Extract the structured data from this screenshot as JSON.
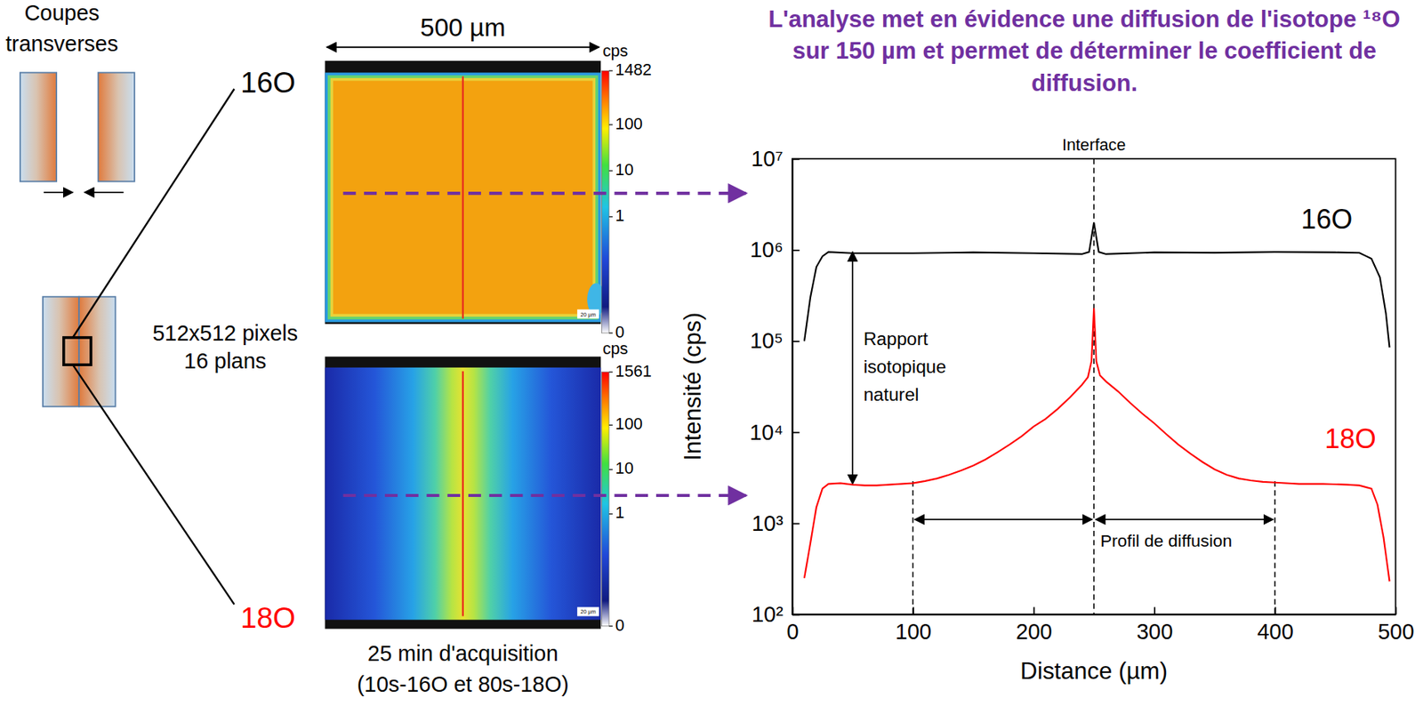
{
  "title": "L'analyse met en évidence une diffusion de l'isotope ¹⁸O sur 150 µm et permet de déterminer le coefficient de diffusion.",
  "left_panel": {
    "caption": "Coupes transverses",
    "width_label": "500 µm",
    "image_info": [
      "512x512 pixels",
      "16 plans"
    ],
    "acquisition": [
      "25 min d'acquisition",
      "(10s-16O et 80s-18O)"
    ],
    "maps": [
      {
        "label": "16O",
        "color": "#000000",
        "unit": "cps",
        "colorbar_range": [
          0,
          1482
        ],
        "colorbar_ticks": [
          0,
          1,
          10,
          100,
          1482
        ],
        "scale_bar": "20 µm"
      },
      {
        "label": "18O",
        "color": "#ff0000",
        "unit": "cps",
        "colorbar_range": [
          0,
          1561
        ],
        "colorbar_ticks": [
          0,
          1,
          10,
          100,
          1561
        ],
        "scale_bar": "20 µm"
      }
    ]
  },
  "chart_data": {
    "type": "line",
    "log": "y",
    "xlabel": "Distance (µm)",
    "ylabel": "Intensité (cps)",
    "xlim": [
      0,
      500
    ],
    "ylim": [
      100,
      10000000
    ],
    "xticks": [
      0,
      100,
      200,
      300,
      400,
      500
    ],
    "yticks": [
      {
        "value": 100,
        "label": "10²"
      },
      {
        "value": 1000,
        "label": "10³"
      },
      {
        "value": 10000,
        "label": "10⁴"
      },
      {
        "value": 100000,
        "label": "10⁵"
      },
      {
        "value": 1000000,
        "label": "10⁶"
      },
      {
        "value": 10000000,
        "label": "10⁷"
      }
    ],
    "series": [
      {
        "name": "16O",
        "color": "#000000",
        "x": [
          10,
          15,
          20,
          25,
          30,
          50,
          100,
          150,
          200,
          240,
          246,
          250,
          254,
          260,
          300,
          350,
          400,
          450,
          470,
          480,
          487,
          492,
          495
        ],
        "values": [
          100000,
          300000,
          650000,
          850000,
          950000,
          920000,
          920000,
          940000,
          920000,
          900000,
          950000,
          2000000,
          950000,
          900000,
          940000,
          930000,
          950000,
          940000,
          930000,
          800000,
          500000,
          200000,
          85000
        ]
      },
      {
        "name": "18O",
        "color": "#ff0000",
        "x": [
          10,
          15,
          20,
          25,
          30,
          40,
          50,
          60,
          70,
          80,
          90,
          100,
          110,
          120,
          130,
          140,
          150,
          160,
          170,
          180,
          190,
          200,
          210,
          220,
          230,
          240,
          245,
          248,
          250,
          252,
          255,
          260,
          270,
          280,
          290,
          300,
          310,
          320,
          330,
          340,
          350,
          360,
          370,
          380,
          390,
          400,
          420,
          440,
          460,
          470,
          480,
          485,
          490,
          495
        ],
        "values": [
          250,
          600,
          1500,
          2400,
          2700,
          2750,
          2650,
          2600,
          2600,
          2650,
          2700,
          2750,
          2900,
          3100,
          3400,
          3800,
          4300,
          5000,
          6000,
          7300,
          9000,
          11500,
          14000,
          18000,
          24000,
          33000,
          40000,
          60000,
          230000,
          60000,
          42000,
          36000,
          28000,
          21000,
          16000,
          12500,
          9500,
          7300,
          5800,
          4700,
          3900,
          3400,
          3100,
          2950,
          2850,
          2800,
          2700,
          2700,
          2650,
          2600,
          2400,
          1600,
          700,
          230
        ]
      }
    ],
    "annotations": {
      "interface": {
        "text": "Interface",
        "x": 250
      },
      "natural_ratio": {
        "text": "Rapport isotopique naturel",
        "x": 50,
        "y_from": 950000,
        "y_to": 2700
      },
      "diffusion_profile": {
        "text": "Profil de diffusion",
        "x_from": 100,
        "x_center": 250,
        "x_to": 400,
        "y": 1100,
        "line_top": 2900
      }
    }
  }
}
